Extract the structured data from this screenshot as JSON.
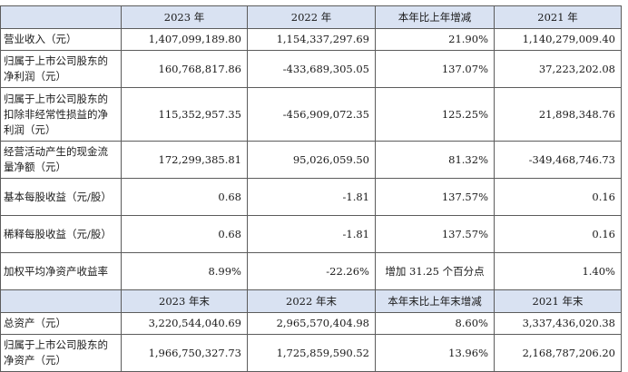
{
  "header1": {
    "c1": "",
    "c2": "2023 年",
    "c3": "2022 年",
    "c4": "本年比上年增减",
    "c5": "2021 年"
  },
  "rows1": [
    {
      "label": "营业收入（元）",
      "v2023": "1,407,099,189.80",
      "v2022": "1,154,337,297.69",
      "change": "21.90%",
      "v2021": "1,140,279,009.40"
    },
    {
      "label": "归属于上市公司股东的净利润（元）",
      "v2023": "160,768,817.86",
      "v2022": "-433,689,305.05",
      "change": "137.07%",
      "v2021": "37,223,202.08"
    },
    {
      "label": "归属于上市公司股东的扣除非经常性损益的净利润（元）",
      "v2023": "115,352,957.35",
      "v2022": "-456,909,072.35",
      "change": "125.25%",
      "v2021": "21,898,348.76"
    },
    {
      "label": "经营活动产生的现金流量净额（元）",
      "v2023": "172,299,385.81",
      "v2022": "95,026,059.50",
      "change": "81.32%",
      "v2021": "-349,468,746.73"
    },
    {
      "label": "基本每股收益（元/股）",
      "v2023": "0.68",
      "v2022": "-1.81",
      "change": "137.57%",
      "v2021": "0.16"
    },
    {
      "label": "稀释每股收益（元/股）",
      "v2023": "0.68",
      "v2022": "-1.81",
      "change": "137.57%",
      "v2021": "0.16"
    },
    {
      "label": "加权平均净资产收益率",
      "v2023": "8.99%",
      "v2022": "-22.26%",
      "change": "增加 31.25 个百分点",
      "v2021": "1.40%"
    }
  ],
  "header2": {
    "c1": "",
    "c2": "2023 年末",
    "c3": "2022 年末",
    "c4": "本年末比上年末增减",
    "c5": "2021 年末"
  },
  "rows2": [
    {
      "label": "总资产（元）",
      "v2023": "3,220,544,040.69",
      "v2022": "2,965,570,404.98",
      "change": "8.60%",
      "v2021": "3,337,436,020.38"
    },
    {
      "label": "归属于上市公司股东的净资产（元）",
      "v2023": "1,966,750,327.73",
      "v2022": "1,725,859,590.52",
      "change": "13.96%",
      "v2021": "2,168,787,206.20"
    }
  ]
}
